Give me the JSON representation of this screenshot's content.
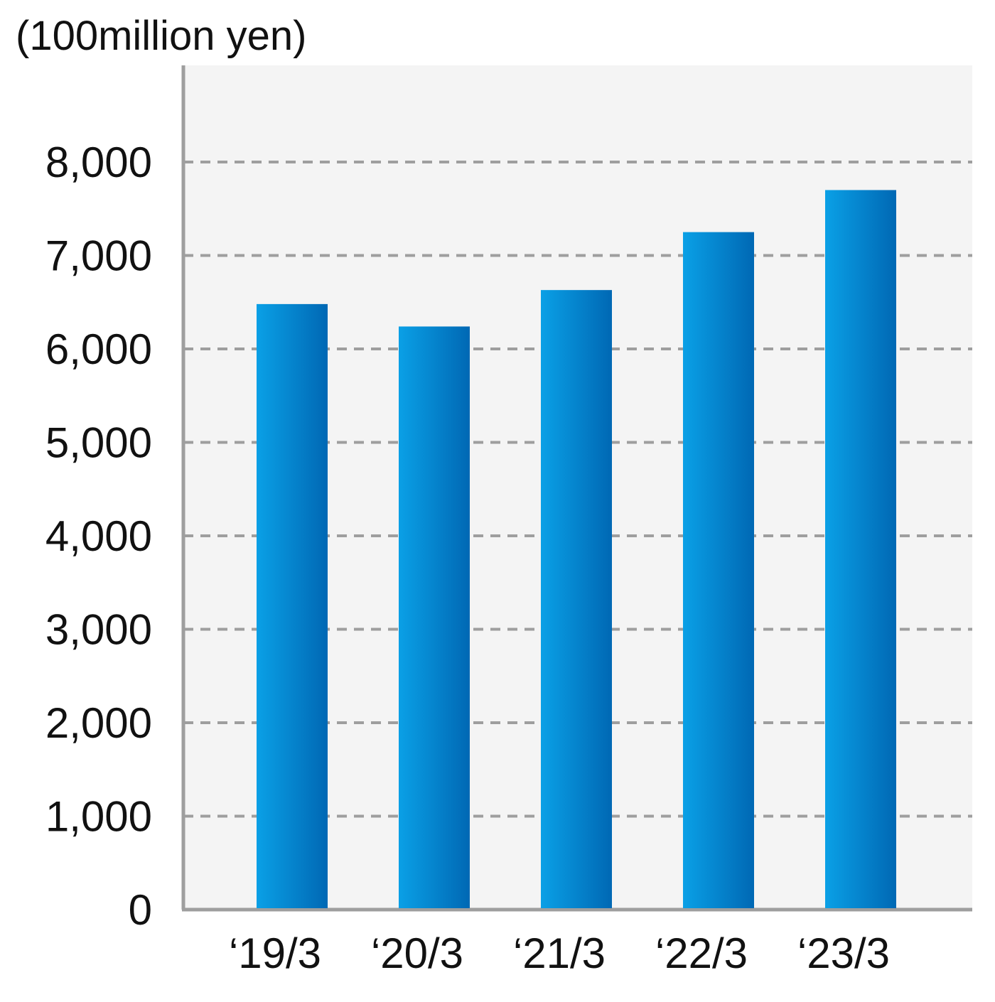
{
  "chart_data": {
    "type": "bar",
    "unit_label": "(100million yen)",
    "categories": [
      "‘19/3",
      "‘20/3",
      "‘21/3",
      "‘22/3",
      "‘23/3"
    ],
    "values": [
      6480,
      6240,
      6630,
      7250,
      7700
    ],
    "yticks": [
      "0",
      "1,000",
      "2,000",
      "3,000",
      "4,000",
      "5,000",
      "6,000",
      "7,000",
      "8,000"
    ],
    "ylim": [
      0,
      9000
    ],
    "grid": true,
    "colors": {
      "plot_background": "#f4f4f4",
      "grid": "#9e9e9e",
      "axis": "#9e9e9e",
      "bar_light": "#0aa0e6",
      "bar_dark": "#0068b4",
      "text": "#111111"
    }
  }
}
